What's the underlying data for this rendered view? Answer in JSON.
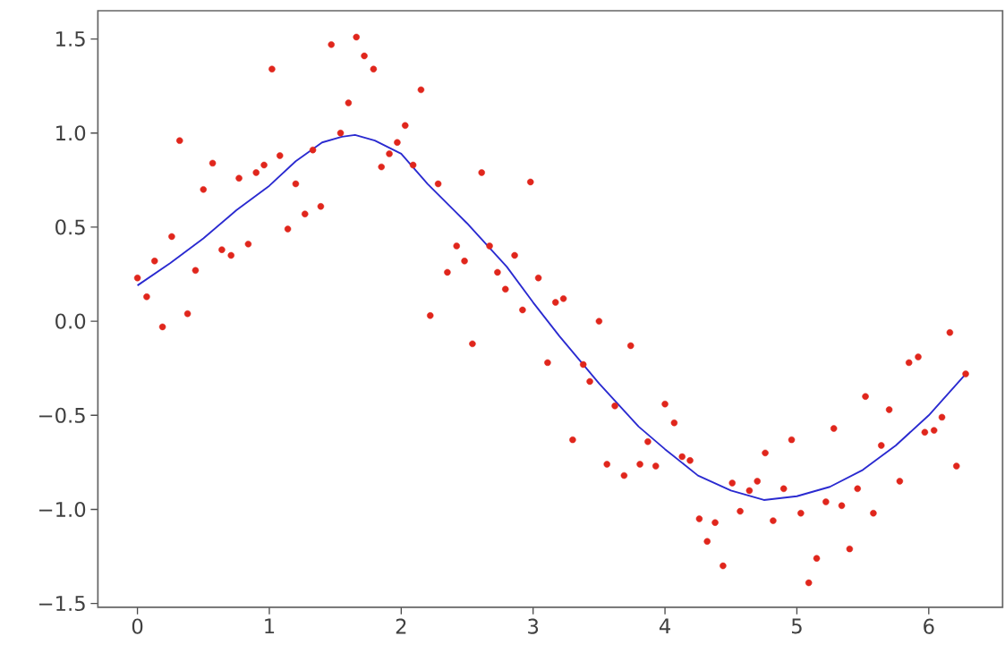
{
  "chart_data": {
    "type": "scatter",
    "xlim": [
      -0.3,
      6.56
    ],
    "ylim": [
      -1.52,
      1.65
    ],
    "xticks": [
      0,
      1,
      2,
      3,
      4,
      5,
      6
    ],
    "yticks": [
      {
        "value": -1.5,
        "label": "−1.5"
      },
      {
        "value": -1.0,
        "label": "−1.0"
      },
      {
        "value": -0.5,
        "label": "−0.5"
      },
      {
        "value": 0,
        "label": "0.0"
      },
      {
        "value": 0.5,
        "label": "0.5"
      },
      {
        "value": 1.0,
        "label": "1.0"
      },
      {
        "value": 1.5,
        "label": "1.5"
      }
    ],
    "grid": false,
    "series": [
      {
        "color": "#e0261c",
        "marker": "circle",
        "x": [
          0,
          0.07,
          0.13,
          0.19,
          0.26,
          0.32,
          0.38,
          0.44,
          0.5,
          0.57,
          0.64,
          0.71,
          0.77,
          0.84,
          0.9,
          0.96,
          1.02,
          1.08,
          1.14,
          1.2,
          1.27,
          1.33,
          1.39,
          1.47,
          1.54,
          1.6,
          1.66,
          1.72,
          1.79,
          1.85,
          1.91,
          1.97,
          2.03,
          2.09,
          2.15,
          2.22,
          2.28,
          2.35,
          2.42,
          2.48,
          2.54,
          2.61,
          2.67,
          2.73,
          2.79,
          2.86,
          2.92,
          2.98,
          3.04,
          3.11,
          3.17,
          3.23,
          3.3,
          3.38,
          3.43,
          3.5,
          3.56,
          3.62,
          3.69,
          3.74,
          3.81,
          3.87,
          3.93,
          4.0,
          4.07,
          4.13,
          4.19,
          4.26,
          4.32,
          4.38,
          4.44,
          4.51,
          4.57,
          4.64,
          4.7,
          4.76,
          4.82,
          4.9,
          4.96,
          5.03,
          5.09,
          5.15,
          5.22,
          5.28,
          5.34,
          5.4,
          5.46,
          5.52,
          5.58,
          5.64,
          5.7,
          5.78,
          5.85,
          5.92,
          5.97,
          6.04,
          6.1,
          6.16,
          6.21,
          6.28
        ],
        "values": [
          0.23,
          0.13,
          0.32,
          -0.03,
          0.45,
          0.96,
          0.04,
          0.27,
          0.7,
          0.84,
          0.38,
          0.35,
          0.76,
          0.41,
          0.79,
          0.83,
          1.34,
          0.88,
          0.49,
          0.73,
          0.57,
          0.91,
          0.61,
          1.47,
          1.0,
          1.16,
          1.51,
          1.41,
          1.34,
          0.82,
          0.89,
          0.95,
          1.04,
          0.83,
          1.23,
          0.03,
          0.73,
          0.26,
          0.4,
          0.32,
          -0.12,
          0.79,
          0.4,
          0.26,
          0.17,
          0.35,
          0.06,
          0.74,
          0.23,
          -0.22,
          0.1,
          0.12,
          -0.63,
          -0.23,
          -0.32,
          0.0,
          -0.76,
          -0.45,
          -0.82,
          -0.13,
          -0.76,
          -0.64,
          -0.77,
          -0.44,
          -0.54,
          -0.72,
          -0.74,
          -1.05,
          -1.17,
          -1.07,
          -1.3,
          -0.86,
          -1.01,
          -0.9,
          -0.85,
          -0.7,
          -1.06,
          -0.89,
          -0.63,
          -1.02,
          -1.39,
          -1.26,
          -0.96,
          -0.57,
          -0.98,
          -1.21,
          -0.89,
          -0.4,
          -1.02,
          -0.66,
          -0.47,
          -0.85,
          -0.22,
          -0.19,
          -0.59,
          -0.58,
          -0.51,
          -0.06,
          -0.77,
          -0.28
        ]
      },
      {
        "type": "line",
        "color": "#2a2ad0",
        "marker": "none",
        "line_style": "solid",
        "x": [
          0,
          0.25,
          0.5,
          0.75,
          1.0,
          1.2,
          1.4,
          1.55,
          1.65,
          1.8,
          2.0,
          2.2,
          2.5,
          2.8,
          3.0,
          3.2,
          3.5,
          3.8,
          4.0,
          4.25,
          4.5,
          4.75,
          5.0,
          5.25,
          5.5,
          5.75,
          6.0,
          6.28
        ],
        "values": [
          0.19,
          0.31,
          0.44,
          0.59,
          0.72,
          0.85,
          0.95,
          0.98,
          0.99,
          0.96,
          0.89,
          0.73,
          0.52,
          0.29,
          0.1,
          -0.08,
          -0.33,
          -0.56,
          -0.68,
          -0.82,
          -0.9,
          -0.95,
          -0.93,
          -0.88,
          -0.79,
          -0.66,
          -0.5,
          -0.28
        ]
      }
    ]
  }
}
